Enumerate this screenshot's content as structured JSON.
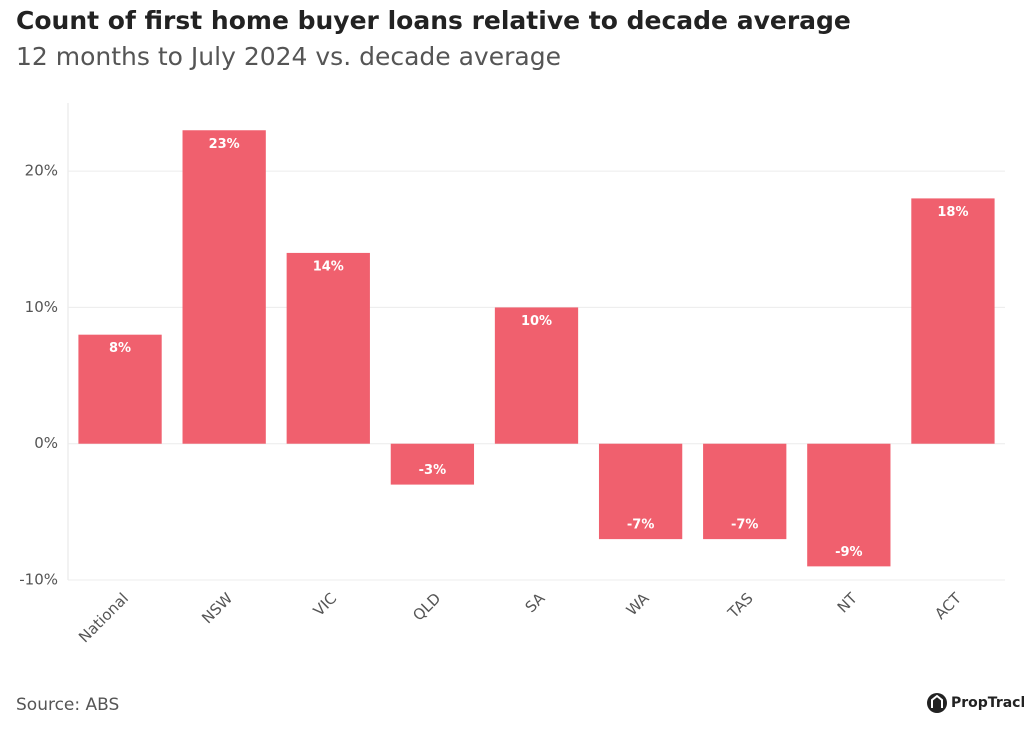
{
  "chart_data": {
    "type": "bar",
    "title": "Count of first home buyer loans relative to decade average",
    "subtitle": "12 months to July 2024 vs. decade average",
    "categories": [
      "National",
      "NSW",
      "VIC",
      "QLD",
      "SA",
      "WA",
      "TAS",
      "NT",
      "ACT"
    ],
    "values": [
      8,
      23,
      14,
      -3,
      10,
      -7,
      -7,
      -9,
      18
    ],
    "value_labels": [
      "8%",
      "23%",
      "14%",
      "-3%",
      "10%",
      "-7%",
      "-7%",
      "-9%",
      "18%"
    ],
    "color": "#f0606e",
    "ylim": [
      -10,
      25
    ],
    "yticks": [
      {
        "value": -10,
        "label": "-10%"
      },
      {
        "value": 0,
        "label": "0%"
      },
      {
        "value": 10,
        "label": "10%"
      },
      {
        "value": 20,
        "label": "20%"
      }
    ],
    "grid": true,
    "source": "Source: ABS",
    "brand": "PropTrack"
  }
}
